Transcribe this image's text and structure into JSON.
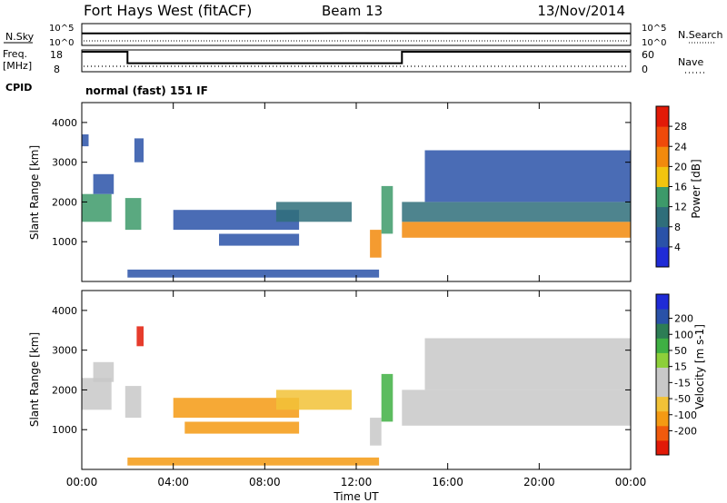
{
  "header": {
    "station": "Fort Hays West (fitACF)",
    "beam": "Beam 13",
    "date": "13/Nov/2014"
  },
  "noise_panel": {
    "left_label": "N.Sky",
    "left_ticks": [
      "10^5",
      "10^0"
    ],
    "right_label": "N.Search",
    "right_ticks": [
      "10^5",
      "10^0"
    ]
  },
  "freq_panel": {
    "left_label_line1": "Freq.",
    "left_label_line2": "[MHz]",
    "left_ticks": [
      "18",
      "8"
    ],
    "right_label": "Nave",
    "right_ticks": [
      "60",
      "0"
    ]
  },
  "cpid": {
    "label": "CPID",
    "text": "normal (fast) 151 IF"
  },
  "x_axis": {
    "label": "Time UT",
    "ticks": [
      "00:00",
      "04:00",
      "08:00",
      "12:00",
      "16:00",
      "20:00",
      "00:00"
    ]
  },
  "colors": {
    "power": [
      "#1f2bd6",
      "#2a52a8",
      "#2f6e7a",
      "#3d9a6a",
      "#f2c40f",
      "#f28a0c",
      "#ef4a0a",
      "#e21a07"
    ],
    "velocity": [
      "#e21a07",
      "#f05a0c",
      "#f49a13",
      "#f2c237",
      "#c8c8c8",
      "#c8c8c8",
      "#8dcf3a",
      "#3fb043",
      "#2d7d55",
      "#2a52a8",
      "#1f2bd6"
    ]
  },
  "chart_data": [
    {
      "type": "line",
      "title": "Fort Hays West (fitACF)",
      "panel": "noise",
      "xlabel": "Time UT",
      "ylabel": "N.Sky",
      "y_log": true,
      "x": [
        0,
        4,
        8,
        12,
        16,
        20,
        24
      ],
      "series": [
        {
          "name": "N.Sky",
          "values": [
            1000,
            1100,
            1000,
            1200,
            1100,
            1000,
            1000
          ]
        },
        {
          "name": "N.Search",
          "values": [
            1,
            1,
            1,
            1,
            1,
            1,
            1
          ]
        }
      ]
    },
    {
      "type": "line",
      "panel": "frequency",
      "xlabel": "Time UT",
      "ylabel": "Freq. [MHz]",
      "ylim": [
        8,
        18
      ],
      "x": [
        0,
        2,
        2,
        14,
        14,
        24
      ],
      "series": [
        {
          "name": "Freq.",
          "values": [
            18,
            18,
            12,
            12,
            18,
            18
          ]
        },
        {
          "name": "Nave",
          "values": [
            10,
            10,
            10,
            10,
            10,
            10
          ]
        }
      ]
    },
    {
      "type": "heatmap",
      "panel": "power",
      "xlabel": "Time UT",
      "ylabel": "Slant Range [km]",
      "colorbar_label": "Power [dB]",
      "colorbar_ticks": [
        4,
        8,
        12,
        16,
        20,
        24,
        28
      ],
      "ylim": [
        0,
        4500
      ],
      "yticks": [
        1000,
        2000,
        3000,
        4000
      ],
      "xlim": [
        0,
        24
      ],
      "bands": [
        {
          "t0": 0.0,
          "t1": 1.3,
          "r0": 1500,
          "r1": 2200,
          "level": 12
        },
        {
          "t0": 0.5,
          "t1": 1.4,
          "r0": 2200,
          "r1": 2700,
          "level": 6
        },
        {
          "t0": 0.0,
          "t1": 0.3,
          "r0": 3400,
          "r1": 3700,
          "level": 4
        },
        {
          "t0": 1.9,
          "t1": 2.6,
          "r0": 1300,
          "r1": 2100,
          "level": 12
        },
        {
          "t0": 2.3,
          "t1": 2.7,
          "r0": 3000,
          "r1": 3600,
          "level": 6
        },
        {
          "t0": 4.0,
          "t1": 9.5,
          "r0": 1300,
          "r1": 1800,
          "level": 5
        },
        {
          "t0": 6.0,
          "t1": 9.5,
          "r0": 900,
          "r1": 1200,
          "level": 5
        },
        {
          "t0": 8.5,
          "t1": 11.8,
          "r0": 1500,
          "r1": 2000,
          "level": 10
        },
        {
          "t0": 2.0,
          "t1": 13.0,
          "r0": 100,
          "r1": 300,
          "level": 5
        },
        {
          "t0": 12.6,
          "t1": 13.1,
          "r0": 600,
          "r1": 1300,
          "level": 20
        },
        {
          "t0": 13.1,
          "t1": 13.6,
          "r0": 1200,
          "r1": 2400,
          "level": 14
        },
        {
          "t0": 14.0,
          "t1": 24.0,
          "r0": 1100,
          "r1": 1500,
          "level": 22
        },
        {
          "t0": 14.0,
          "t1": 24.0,
          "r0": 1500,
          "r1": 2000,
          "level": 10
        },
        {
          "t0": 15.0,
          "t1": 24.0,
          "r0": 2000,
          "r1": 3300,
          "level": 5
        }
      ]
    },
    {
      "type": "heatmap",
      "panel": "velocity",
      "xlabel": "Time UT",
      "ylabel": "Slant Range [km]",
      "colorbar_label": "Velocity [m s-1]",
      "colorbar_ticks": [
        -200,
        -100,
        -50,
        -15,
        15,
        50,
        100,
        200
      ],
      "ylim": [
        0,
        4500
      ],
      "yticks": [
        1000,
        2000,
        3000,
        4000
      ],
      "xlim": [
        0,
        24
      ],
      "bands": [
        {
          "t0": 0.0,
          "t1": 1.3,
          "r0": 1500,
          "r1": 2300,
          "velocity": 0
        },
        {
          "t0": 0.5,
          "t1": 1.4,
          "r0": 2200,
          "r1": 2700,
          "velocity": 0
        },
        {
          "t0": 2.4,
          "t1": 2.7,
          "r0": 3100,
          "r1": 3600,
          "velocity": -250
        },
        {
          "t0": 1.9,
          "t1": 2.6,
          "r0": 1300,
          "r1": 2100,
          "velocity": 0
        },
        {
          "t0": 4.0,
          "t1": 9.5,
          "r0": 1300,
          "r1": 1800,
          "velocity": -60
        },
        {
          "t0": 4.5,
          "t1": 9.5,
          "r0": 900,
          "r1": 1200,
          "velocity": -60
        },
        {
          "t0": 8.5,
          "t1": 11.8,
          "r0": 1500,
          "r1": 2000,
          "velocity": -40
        },
        {
          "t0": 2.0,
          "t1": 13.0,
          "r0": 100,
          "r1": 300,
          "velocity": -60
        },
        {
          "t0": 12.6,
          "t1": 13.1,
          "r0": 600,
          "r1": 1300,
          "velocity": 0
        },
        {
          "t0": 13.1,
          "t1": 13.6,
          "r0": 1200,
          "r1": 2400,
          "velocity": 60
        },
        {
          "t0": 14.0,
          "t1": 24.0,
          "r0": 1100,
          "r1": 2000,
          "velocity": 0
        },
        {
          "t0": 15.0,
          "t1": 24.0,
          "r0": 2000,
          "r1": 3300,
          "velocity": 0
        }
      ]
    }
  ]
}
